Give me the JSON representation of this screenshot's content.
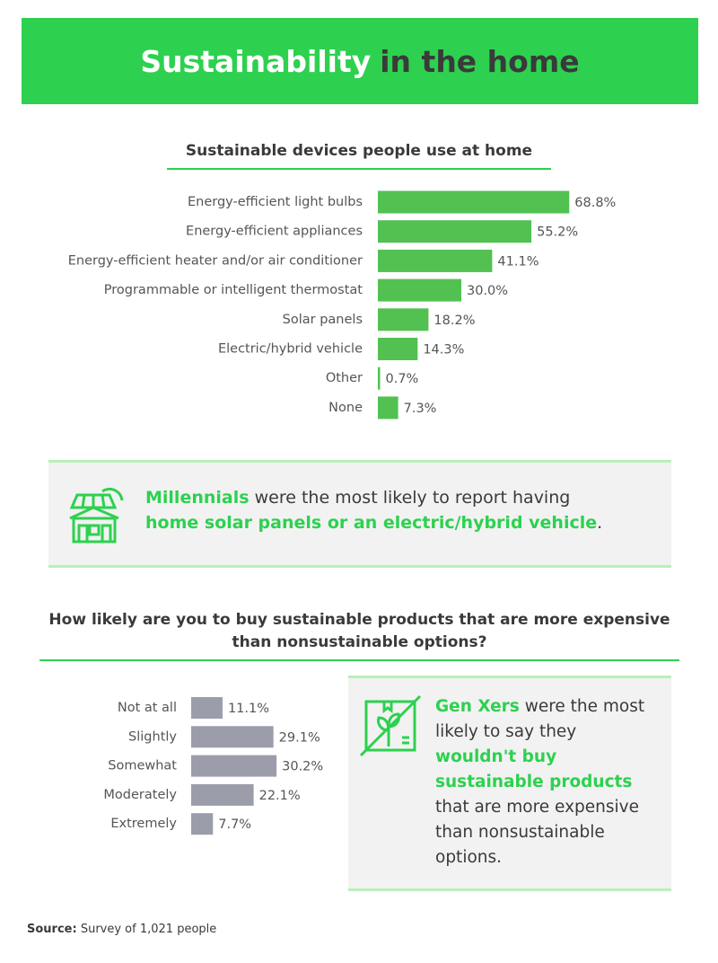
{
  "header": {
    "title": [
      "Sustainability",
      "in the home"
    ]
  },
  "chart_data": [
    {
      "type": "bar",
      "orientation": "horizontal",
      "title": "Sustainable devices people use at home",
      "categories": [
        "Energy-efficient light bulbs",
        "Energy-efficient appliances",
        "Energy-efficient heater and/or air conditioner",
        "Programmable or intelligent thermostat",
        "Solar panels",
        "Electric/hybrid vehicle",
        "Other",
        "None"
      ],
      "values": [
        68.8,
        55.2,
        41.1,
        30.0,
        18.2,
        14.3,
        0.7,
        7.3
      ],
      "value_labels": [
        "68.8%",
        "55.2%",
        "41.1%",
        "30.0%",
        "18.2%",
        "14.3%",
        "0.7%",
        "7.3%"
      ],
      "color": "#52c152"
    },
    {
      "type": "bar",
      "orientation": "horizontal",
      "title": "How likely are you to buy sustainable products that are more expensive than nonsustainable options?",
      "categories": [
        "Not at all",
        "Slightly",
        "Somewhat",
        "Moderately",
        "Extremely"
      ],
      "values": [
        11.1,
        29.1,
        30.2,
        22.1,
        7.7
      ],
      "value_labels": [
        "11.1%",
        "29.1%",
        "30.2%",
        "22.1%",
        "7.7%"
      ],
      "color": "#9b9dab"
    }
  ],
  "callouts": [
    {
      "parts": [
        "Millennials",
        "were the most likely to report having",
        "home solar panels or an electric/hybrid vehicle",
        "."
      ]
    },
    {
      "parts": [
        "Gen Xers",
        "were the most likely to say they",
        "wouldn't buy sustainable products",
        "that are more expensive than nonsustainable options."
      ]
    }
  ],
  "source": {
    "label": "Source:",
    "text": "Survey of 1,021 people"
  }
}
